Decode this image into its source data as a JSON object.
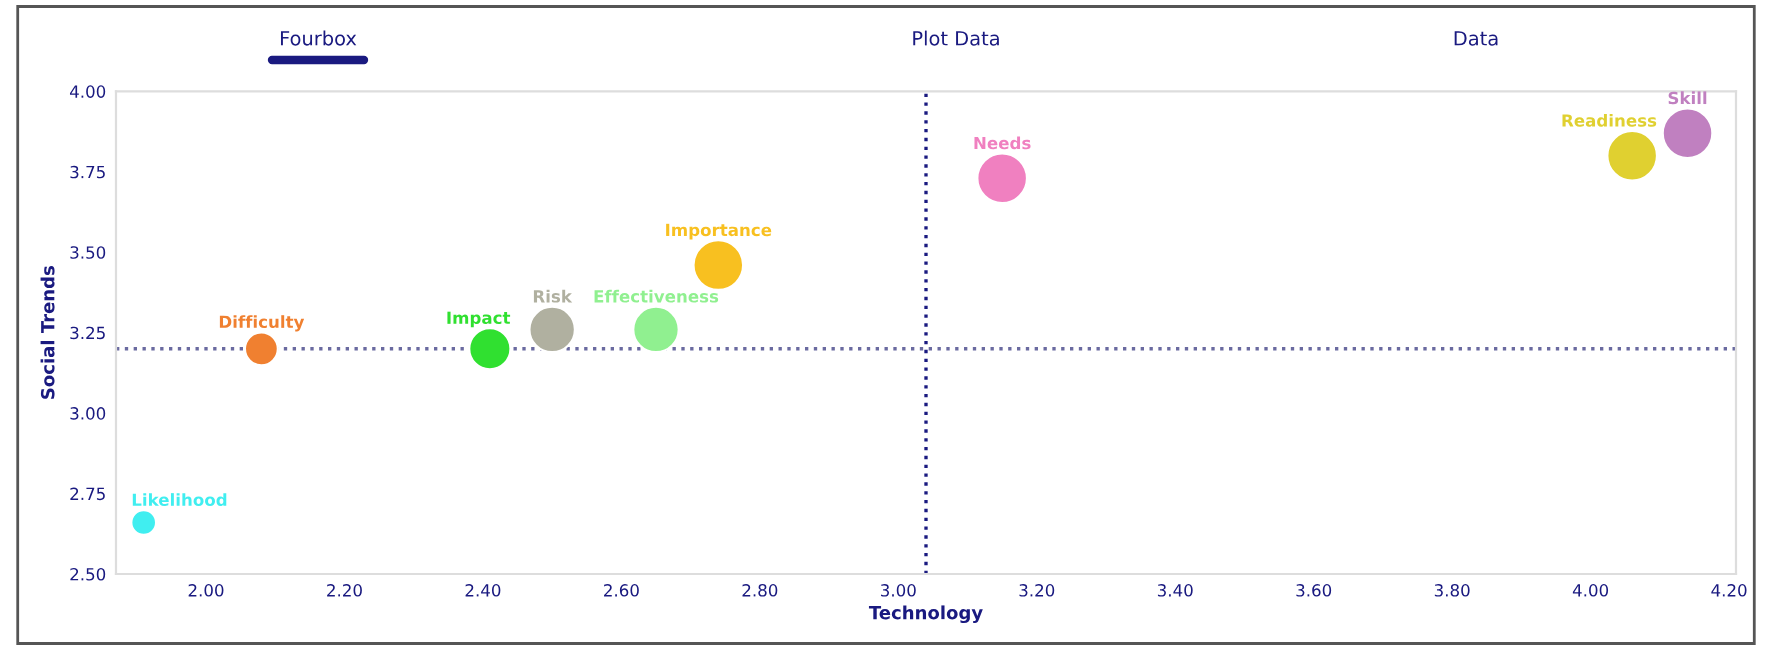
{
  "chart_data": {
    "type": "bubble",
    "xlabel": "Technology",
    "ylabel": "Social Trends",
    "annotations": [
      "Fourbox",
      "Plot Data",
      "Data"
    ],
    "xlim": [
      1.87,
      4.21
    ],
    "xticks": [
      {
        "value": 2.0,
        "label": "2.00"
      },
      {
        "value": 2.2,
        "label": "2.20"
      },
      {
        "value": 2.4,
        "label": "2.40"
      },
      {
        "value": 2.6,
        "label": "2.60"
      },
      {
        "value": 2.8,
        "label": "2.80"
      },
      {
        "value": 3.0,
        "label": "3.00"
      },
      {
        "value": 3.2,
        "label": "3.20"
      },
      {
        "value": 3.4,
        "label": "3.40"
      },
      {
        "value": 3.6,
        "label": "3.60"
      },
      {
        "value": 3.8,
        "label": "3.80"
      },
      {
        "value": 4.0,
        "label": "4.00"
      },
      {
        "value": 4.2,
        "label": "4.20"
      }
    ],
    "ylim": [
      2.5,
      4.0
    ],
    "yticks": [
      {
        "value": 2.5,
        "label": "2.50"
      },
      {
        "value": 2.75,
        "label": "2.75"
      },
      {
        "value": 3.0,
        "label": "3.00"
      },
      {
        "value": 3.25,
        "label": "3.25"
      },
      {
        "value": 3.5,
        "label": "3.50"
      },
      {
        "value": 3.75,
        "label": "3.75"
      },
      {
        "value": 4.0,
        "label": "4.00"
      }
    ],
    "legend": false,
    "ref_lines": [
      {
        "axis": "x",
        "value": 3.04,
        "color": "#1a1a80",
        "line_style": "dotted"
      },
      {
        "axis": "y",
        "value": 3.2,
        "color": "#6a6aa0",
        "line_style": "dotted"
      }
    ],
    "series": [
      {
        "name": "Likelihood",
        "color": "#40eef0",
        "x": [
          1.91
        ],
        "values": [
          2.66
        ],
        "sizes": [
          0.25
        ]
      },
      {
        "name": "Difficulty",
        "color": "#f08030",
        "x": [
          2.08
        ],
        "values": [
          3.2
        ],
        "sizes": [
          0.44
        ]
      },
      {
        "name": "Impact",
        "color": "#30e030",
        "x": [
          2.41
        ],
        "values": [
          3.2
        ],
        "sizes": [
          0.69
        ]
      },
      {
        "name": "Risk",
        "color": "#b0b0a0",
        "x": [
          2.5
        ],
        "values": [
          3.26
        ],
        "sizes": [
          0.84
        ]
      },
      {
        "name": "Effectiveness",
        "color": "#90f090",
        "x": [
          2.65
        ],
        "values": [
          3.26
        ],
        "sizes": [
          0.84
        ]
      },
      {
        "name": "Importance",
        "color": "#f8c020",
        "x": [
          2.74
        ],
        "values": [
          3.46
        ],
        "sizes": [
          1
        ]
      },
      {
        "name": "Needs",
        "color": "#f080c0",
        "x": [
          3.15
        ],
        "values": [
          3.73
        ],
        "sizes": [
          1
        ]
      },
      {
        "name": "Readiness",
        "color": "#e0d030",
        "x": [
          4.06
        ],
        "values": [
          3.8
        ],
        "sizes": [
          1
        ]
      },
      {
        "name": "Skill",
        "color": "#c080c0",
        "x": [
          4.14
        ],
        "values": [
          3.87
        ],
        "sizes": [
          1
        ]
      }
    ]
  }
}
